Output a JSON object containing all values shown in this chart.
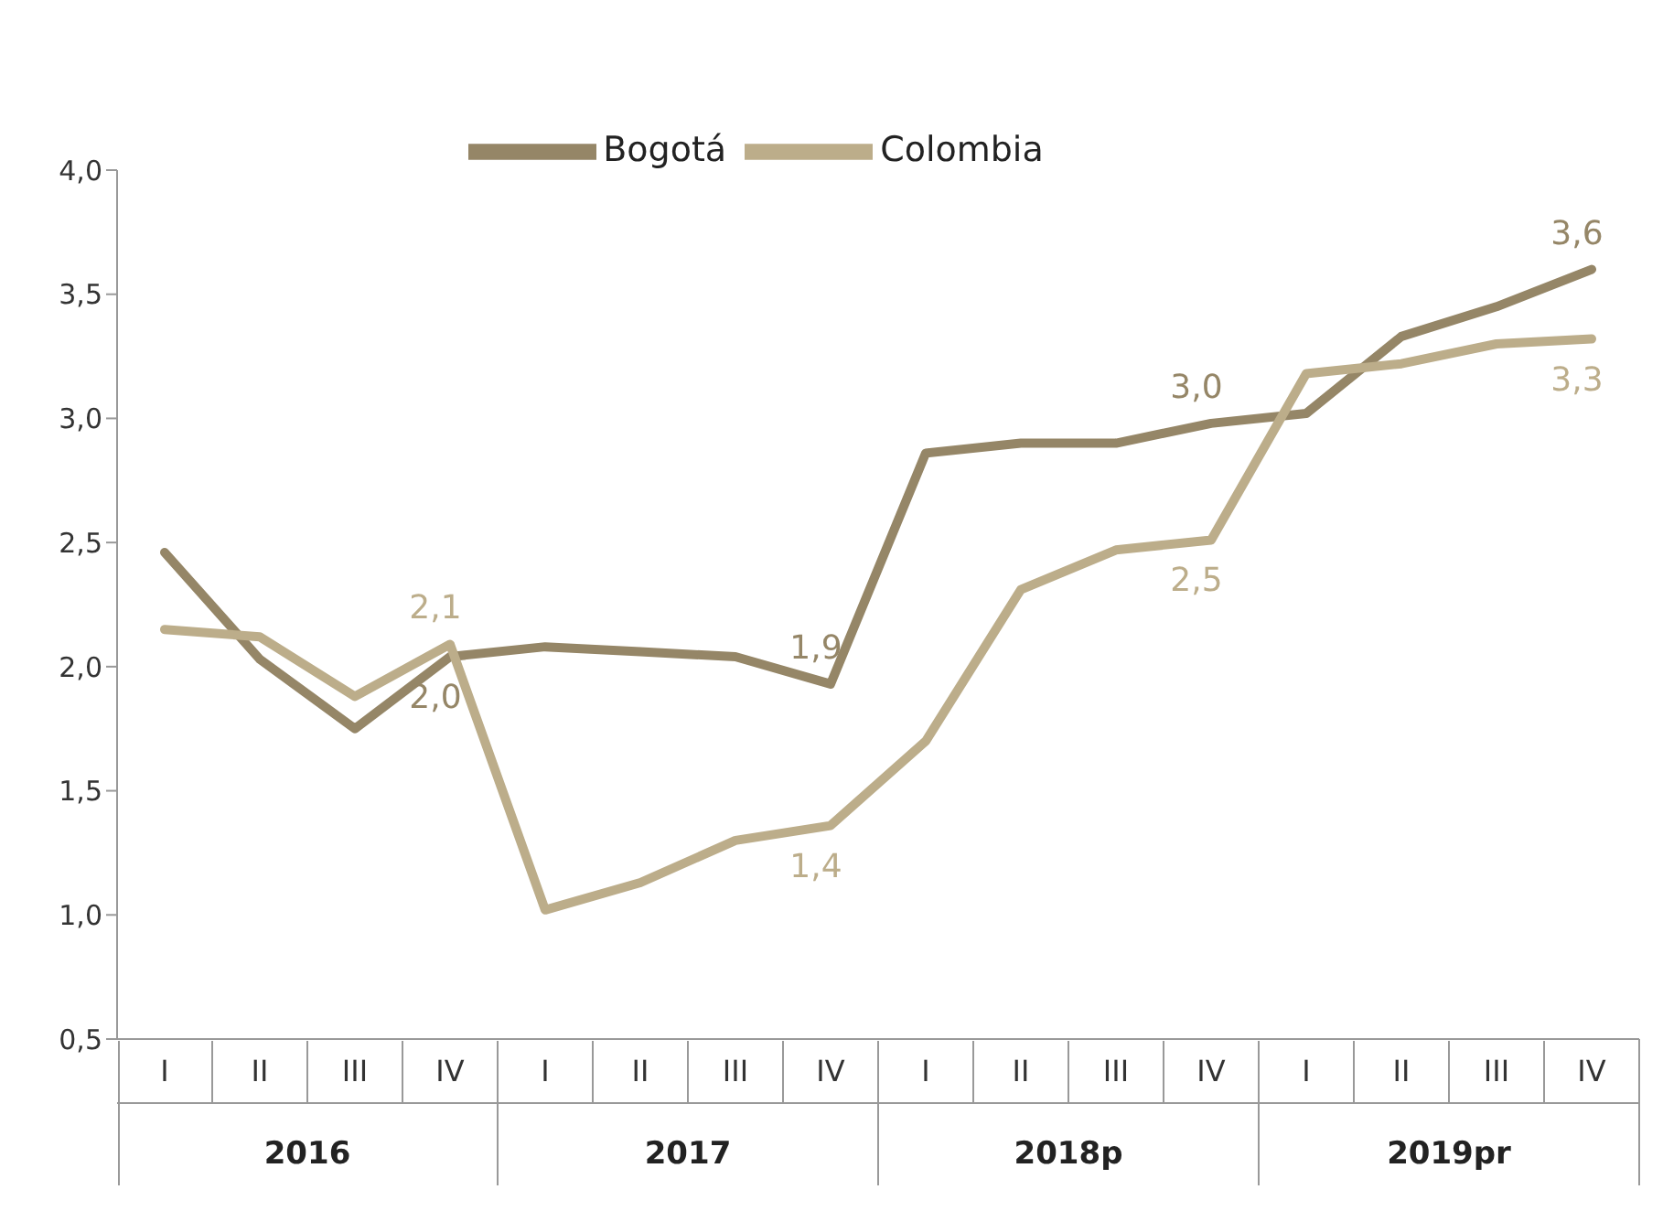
{
  "chart_data": {
    "type": "line",
    "categories": [
      "I",
      "II",
      "III",
      "IV",
      "I",
      "II",
      "III",
      "IV",
      "I",
      "II",
      "III",
      "IV",
      "I",
      "II",
      "III",
      "IV"
    ],
    "annotations": [
      "2016",
      "2017",
      "2018p",
      "2019pr"
    ],
    "series": [
      {
        "name": "Bogotá",
        "color": "#958667",
        "values": [
          2.46,
          2.03,
          1.75,
          2.04,
          2.08,
          2.06,
          2.04,
          1.93,
          2.86,
          2.9,
          2.9,
          2.98,
          3.02,
          3.33,
          3.45,
          3.6
        ],
        "value_labels": [
          null,
          null,
          null,
          "2,0",
          null,
          null,
          null,
          "1,9",
          null,
          null,
          null,
          "3,0",
          null,
          null,
          null,
          "3,6"
        ]
      },
      {
        "name": "Colombia",
        "color": "#bcad8a",
        "values": [
          2.15,
          2.12,
          1.88,
          2.09,
          1.02,
          1.13,
          1.3,
          1.36,
          1.7,
          2.31,
          2.47,
          2.51,
          3.18,
          3.22,
          3.3,
          3.32
        ],
        "value_labels": [
          null,
          null,
          null,
          "2,1",
          null,
          null,
          null,
          "1,4",
          null,
          null,
          null,
          "2,5",
          null,
          null,
          null,
          "3,3"
        ]
      }
    ],
    "ylim": [
      0.5,
      4
    ],
    "yticks": [
      {
        "value": 0.5,
        "label": "0,5"
      },
      {
        "value": 1,
        "label": "1,0"
      },
      {
        "value": 1.5,
        "label": "1,5"
      },
      {
        "value": 2,
        "label": "2,0"
      },
      {
        "value": 2.5,
        "label": "2,5"
      },
      {
        "value": 3,
        "label": "3,0"
      },
      {
        "value": 3.5,
        "label": "3,5"
      },
      {
        "value": 4,
        "label": "4,0"
      }
    ],
    "grid": false,
    "legend": "top",
    "marker": "none",
    "line_style": "solid"
  }
}
